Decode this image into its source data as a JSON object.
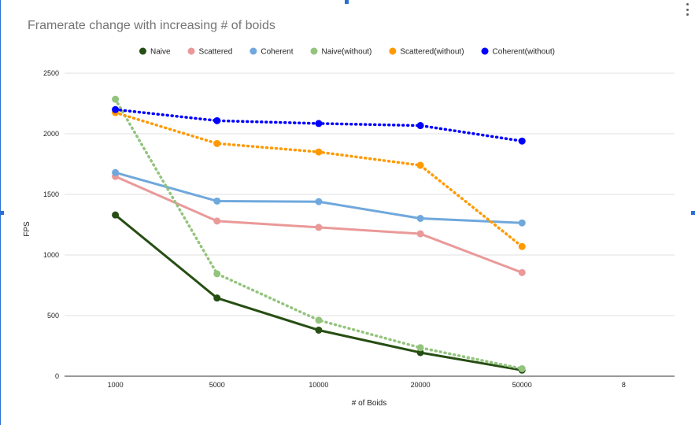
{
  "chart_data": {
    "type": "line",
    "title": "Framerate change with increasing # of boids",
    "xlabel": "# of Boids",
    "ylabel": "FPS",
    "categories": [
      "1000",
      "5000",
      "10000",
      "20000",
      "50000",
      "8"
    ],
    "ylim": [
      0,
      2500
    ],
    "yticks": [
      "0",
      "500",
      "1000",
      "1500",
      "2000",
      "2500"
    ],
    "grid": true,
    "legend_position": "top",
    "series": [
      {
        "name": "Naive",
        "color": "#274e13",
        "dashed": false,
        "values": [
          1330,
          645,
          380,
          195,
          50,
          null
        ]
      },
      {
        "name": "Scattered",
        "color": "#ea9999",
        "dashed": false,
        "values": [
          1648,
          1280,
          1228,
          1175,
          855,
          null
        ]
      },
      {
        "name": "Coherent",
        "color": "#6fa8dc",
        "dashed": false,
        "values": [
          1680,
          1445,
          1440,
          1302,
          1265,
          null
        ]
      },
      {
        "name": "Naive(without)",
        "color": "#93c47d",
        "dashed": true,
        "values": [
          2285,
          845,
          462,
          235,
          62,
          null
        ]
      },
      {
        "name": "Scattered(without)",
        "color": "#ff9900",
        "dashed": true,
        "values": [
          2175,
          1920,
          1850,
          1740,
          1070,
          null
        ]
      },
      {
        "name": "Coherent(without)",
        "color": "#0000ff",
        "dashed": true,
        "values": [
          2200,
          2108,
          2085,
          2068,
          1940,
          null
        ]
      }
    ]
  }
}
